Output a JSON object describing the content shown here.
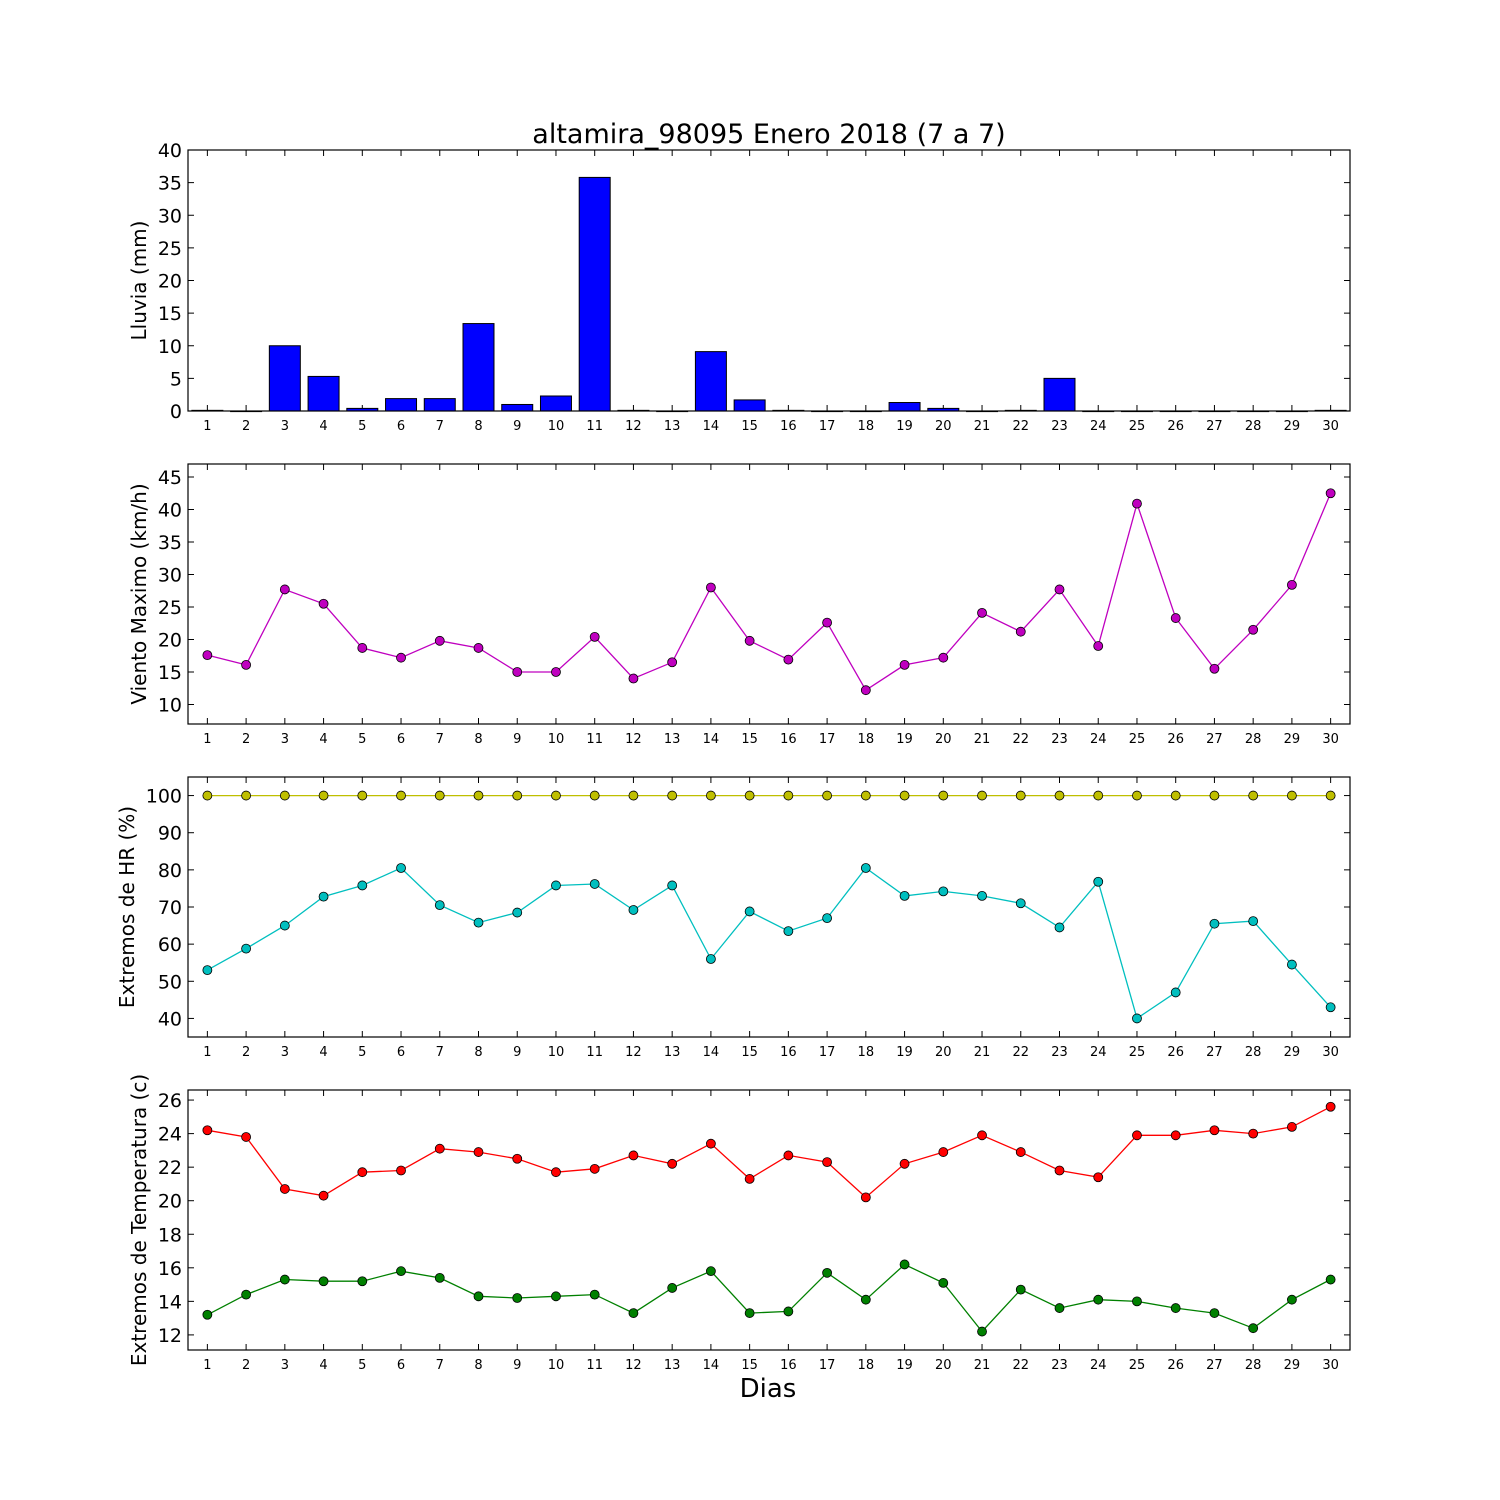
{
  "title": "altamira_98095 Enero 2018  (7 a 7)",
  "xlabel": "Dias",
  "chart_data": [
    {
      "type": "bar",
      "ylabel": "Lluvia (mm)",
      "x": [
        1,
        2,
        3,
        4,
        5,
        6,
        7,
        8,
        9,
        10,
        11,
        12,
        13,
        14,
        15,
        16,
        17,
        18,
        19,
        20,
        21,
        22,
        23,
        24,
        25,
        26,
        27,
        28,
        29,
        30
      ],
      "ylim": [
        0,
        40
      ],
      "yticks": [
        0,
        5,
        10,
        15,
        20,
        25,
        30,
        35,
        40
      ],
      "series": [
        {
          "values": [
            0.1,
            0,
            10,
            5.3,
            0.4,
            1.9,
            1.9,
            13.4,
            1,
            2.3,
            35.8,
            0.1,
            0,
            9.1,
            1.7,
            0.1,
            0,
            0,
            1.3,
            0.4,
            0,
            0.1,
            5,
            0,
            0,
            0,
            0,
            0,
            0,
            0.1
          ],
          "color": "#0000ff"
        }
      ]
    },
    {
      "type": "line",
      "ylabel": "Viento Maximo (km/h)",
      "x": [
        1,
        2,
        3,
        4,
        5,
        6,
        7,
        8,
        9,
        10,
        11,
        12,
        13,
        14,
        15,
        16,
        17,
        18,
        19,
        20,
        21,
        22,
        23,
        24,
        25,
        26,
        27,
        28,
        29,
        30
      ],
      "ylim": [
        7,
        47
      ],
      "yticks": [
        10,
        15,
        20,
        25,
        30,
        35,
        40,
        45
      ],
      "series": [
        {
          "values": [
            17.6,
            16.1,
            27.7,
            25.5,
            18.7,
            17.2,
            19.8,
            18.7,
            15.0,
            15.0,
            20.4,
            14.0,
            16.5,
            28.0,
            19.8,
            16.9,
            22.6,
            12.2,
            16.1,
            17.2,
            24.1,
            21.2,
            27.7,
            19.0,
            40.9,
            23.3,
            15.5,
            21.5,
            28.4,
            42.5
          ],
          "color": "#bf00bf"
        }
      ]
    },
    {
      "type": "line",
      "ylabel": "Extremos de HR (%)",
      "x": [
        1,
        2,
        3,
        4,
        5,
        6,
        7,
        8,
        9,
        10,
        11,
        12,
        13,
        14,
        15,
        16,
        17,
        18,
        19,
        20,
        21,
        22,
        23,
        24,
        25,
        26,
        27,
        28,
        29,
        30
      ],
      "ylim": [
        35,
        105
      ],
      "yticks": [
        40,
        50,
        60,
        70,
        80,
        90,
        100
      ],
      "series": [
        {
          "values": [
            100,
            100,
            100,
            100,
            100,
            100,
            100,
            100,
            100,
            100,
            100,
            100,
            100,
            100,
            100,
            100,
            100,
            100,
            100,
            100,
            100,
            100,
            100,
            100,
            100,
            100,
            100,
            100,
            100,
            100
          ],
          "color": "#bfbf00"
        },
        {
          "values": [
            53,
            58.8,
            65,
            72.8,
            75.8,
            80.5,
            70.5,
            65.8,
            68.5,
            75.8,
            76.2,
            69.2,
            75.8,
            56,
            68.8,
            63.5,
            67,
            80.5,
            73,
            74.2,
            73,
            71,
            64.5,
            76.8,
            40,
            47,
            65.5,
            66.2,
            54.5,
            43
          ],
          "color": "#00bfbf"
        }
      ]
    },
    {
      "type": "line",
      "ylabel": "Extremos de Temperatura (c)",
      "x": [
        1,
        2,
        3,
        4,
        5,
        6,
        7,
        8,
        9,
        10,
        11,
        12,
        13,
        14,
        15,
        16,
        17,
        18,
        19,
        20,
        21,
        22,
        23,
        24,
        25,
        26,
        27,
        28,
        29,
        30
      ],
      "ylim": [
        11.1,
        26.6
      ],
      "yticks": [
        12,
        14,
        16,
        18,
        20,
        22,
        24,
        26
      ],
      "series": [
        {
          "values": [
            24.2,
            23.8,
            20.7,
            20.3,
            21.7,
            21.8,
            23.1,
            22.9,
            22.5,
            21.7,
            21.9,
            22.7,
            22.2,
            23.4,
            21.3,
            22.7,
            22.3,
            20.2,
            22.2,
            22.9,
            23.9,
            22.9,
            21.8,
            21.4,
            23.9,
            23.9,
            24.2,
            24.0,
            24.4,
            25.6
          ],
          "color": "#ff0000"
        },
        {
          "values": [
            13.2,
            14.4,
            15.3,
            15.2,
            15.2,
            15.8,
            15.4,
            14.3,
            14.2,
            14.3,
            14.4,
            13.3,
            14.8,
            15.8,
            13.3,
            13.4,
            15.7,
            14.1,
            16.2,
            15.1,
            12.2,
            14.7,
            13.6,
            14.1,
            14.0,
            13.6,
            13.3,
            12.4,
            14.1,
            15.3
          ],
          "color": "#008000"
        }
      ]
    }
  ]
}
